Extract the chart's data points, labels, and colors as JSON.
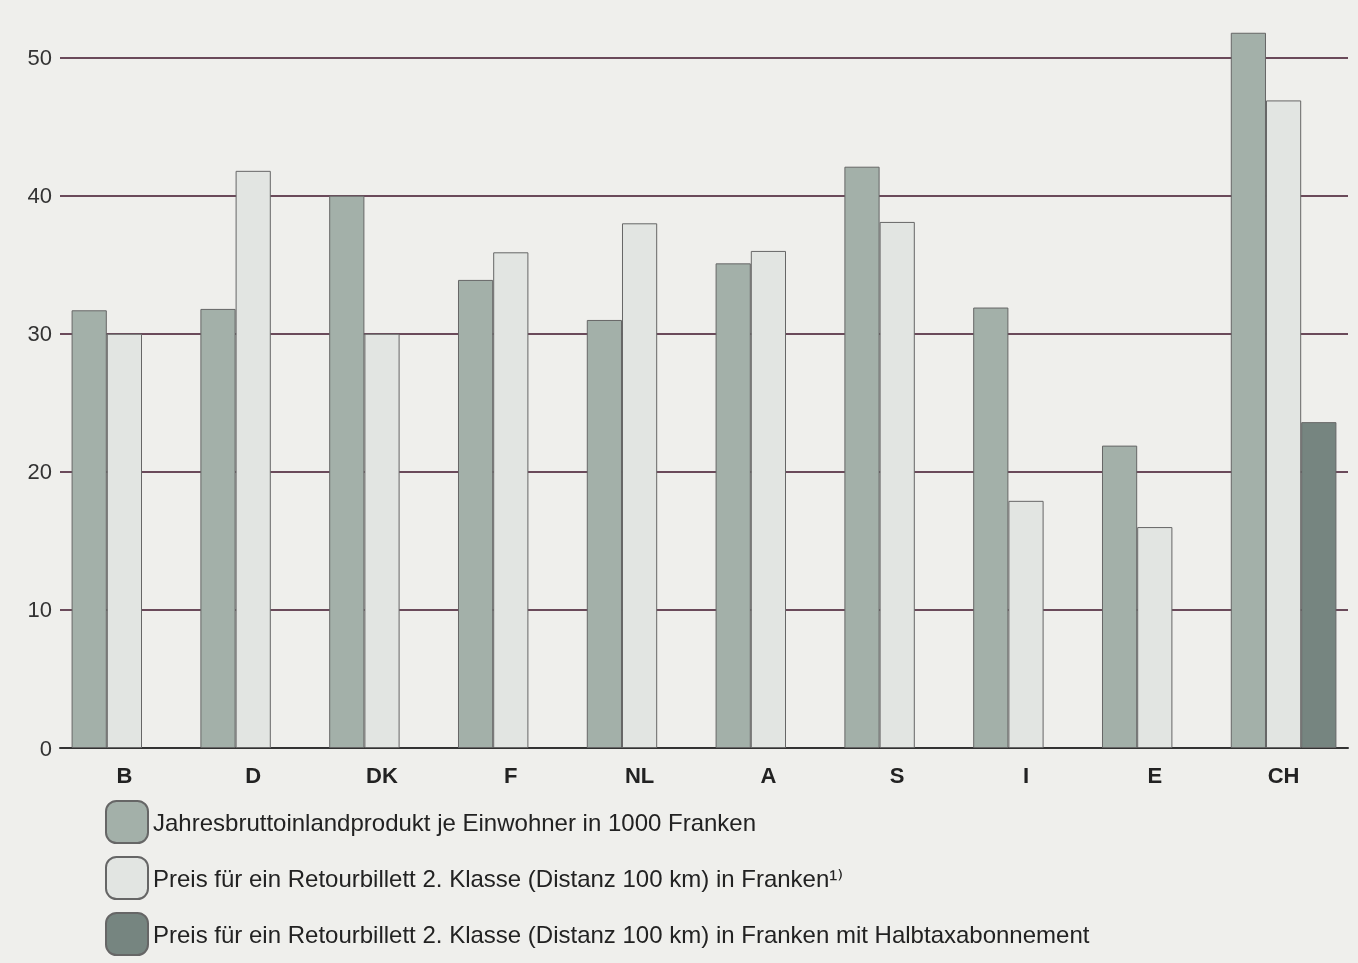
{
  "chart_data": {
    "type": "bar",
    "categories": [
      "B",
      "D",
      "DK",
      "F",
      "NL",
      "A",
      "S",
      "I",
      "E",
      "CH"
    ],
    "series": [
      {
        "name": "Jahresbruttoinlandprodukt je Einwohner in 1000 Franken",
        "color": "#a3b0a9",
        "values": [
          31.7,
          31.8,
          40,
          33.9,
          31,
          35.1,
          42.1,
          31.9,
          21.9,
          51.8
        ]
      },
      {
        "name": "Preis für ein Retourbillett 2. Klasse (Distanz 100 km) in Franken¹⁾",
        "color": "#e2e5e2",
        "values": [
          30,
          41.8,
          30,
          35.9,
          38,
          36,
          38.1,
          17.9,
          16,
          46.9
        ]
      },
      {
        "name": "Preis für ein Retourbillett 2. Klasse (Distanz 100 km) in Franken mit Halbtaxabonnement",
        "color": "#768580",
        "values": [
          null,
          null,
          null,
          null,
          null,
          null,
          null,
          null,
          null,
          23.6
        ]
      }
    ],
    "ylim": [
      0,
      52
    ],
    "yticks": [
      0,
      10,
      20,
      30,
      40,
      50
    ],
    "grid": "y",
    "legend": "bottom left"
  }
}
